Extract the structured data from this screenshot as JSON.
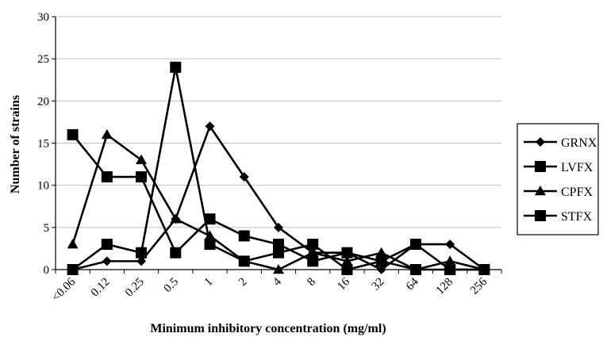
{
  "chart_data": {
    "type": "line",
    "categories": [
      "<0.06",
      "0.12",
      "0.25",
      "0.5",
      "1",
      "2",
      "4",
      "8",
      "16",
      "32",
      "64",
      "128",
      "256"
    ],
    "series": [
      {
        "name": "GRNX",
        "marker": "diamond",
        "values": [
          0,
          1,
          1,
          6,
          17,
          11,
          5,
          2,
          2,
          0,
          3,
          3,
          0
        ]
      },
      {
        "name": "LVFX",
        "marker": "square",
        "values": [
          0,
          3,
          2,
          24,
          3,
          1,
          2,
          3,
          0,
          1,
          3,
          0,
          0
        ]
      },
      {
        "name": "CPFX",
        "marker": "triangle",
        "values": [
          3,
          16,
          13,
          6,
          4,
          1,
          0,
          2,
          1,
          2,
          0,
          1,
          0
        ]
      },
      {
        "name": "STFX",
        "marker": "square",
        "values": [
          16,
          11,
          11,
          2,
          6,
          4,
          3,
          1,
          2,
          1,
          0,
          0,
          0
        ]
      }
    ],
    "xlabel": "Minimum  inhibitory  concentration (mg/ml)",
    "ylabel": "Number of strains",
    "ylim": [
      0,
      30
    ],
    "yticks": [
      "0",
      "5",
      "10",
      "15",
      "20",
      "25",
      "30"
    ],
    "grid": "horizontal",
    "legend_position": "right",
    "line_color": "#000000",
    "grid_color": "#bfbfbf"
  }
}
